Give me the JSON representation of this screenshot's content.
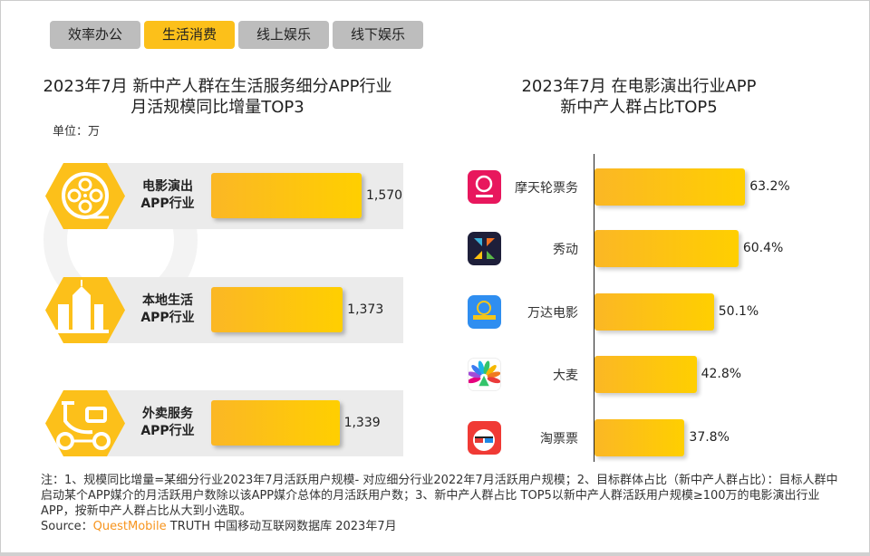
{
  "tabs": [
    {
      "label": "效率办公",
      "active": false
    },
    {
      "label": "生活消费",
      "active": true
    },
    {
      "label": "线上娱乐",
      "active": false
    },
    {
      "label": "线下娱乐",
      "active": false
    }
  ],
  "watermark": "QUEST MOBILE",
  "colors": {
    "accent": "#fcc01a",
    "bar_start": "#fbb725",
    "bar_end": "#ffcf00",
    "tab_inactive": "#bdbdbd",
    "band": "#ebebeb",
    "brand": "#f7941d"
  },
  "chart_data": [
    {
      "type": "bar",
      "orientation": "horizontal",
      "title_line1": "2023年7月 新中产人群在生活服务细分APP行业",
      "title_line2": "月活规模同比增量TOP3",
      "unit": "单位：万",
      "categories": [
        {
          "line1": "电影演出",
          "line2": "APP行业",
          "icon": "film-reel-icon"
        },
        {
          "line1": "本地生活",
          "line2": "APP行业",
          "icon": "city-buildings-icon"
        },
        {
          "line1": "外卖服务",
          "line2": "APP行业",
          "icon": "delivery-scooter-icon"
        }
      ],
      "values": [
        1570,
        1373,
        1339
      ],
      "value_labels": [
        "1,570",
        "1,373",
        "1,339"
      ]
    },
    {
      "type": "bar",
      "orientation": "horizontal",
      "title_line1": "2023年7月 在电影演出行业APP",
      "title_line2": "新中产人群占比TOP5",
      "categories": [
        {
          "name": "摩天轮票务",
          "icon": "motianlun-app-icon",
          "icon_color": "#e8175d"
        },
        {
          "name": "秀动",
          "icon": "xiudong-app-icon",
          "icon_color": "#1e1f3a"
        },
        {
          "name": "万达电影",
          "icon": "wanda-app-icon",
          "icon_color": "#2f8ef0"
        },
        {
          "name": "大麦",
          "icon": "damai-app-icon",
          "icon_color": "#ffffff"
        },
        {
          "name": "淘票票",
          "icon": "taopiaopiao-app-icon",
          "icon_color": "#f03a35"
        }
      ],
      "values": [
        63.2,
        60.4,
        50.1,
        42.8,
        37.8
      ],
      "value_labels": [
        "63.2%",
        "60.4%",
        "50.1%",
        "42.8%",
        "37.8%"
      ]
    }
  ],
  "footer": {
    "note": "注：1、规模同比增量=某细分行业2023年7月活跃用户规模- 对应细分行业2022年7月活跃用户规模；2、目标群体占比（新中产人群占比）：目标人群中启动某个APP媒介的月活跃用户数除以该APP媒介总体的月活跃用户数；3、新中产人群占比 TOP5以新中产人群活跃用户规模≥100万的电影演出行业APP，按新中产人群占比从大到小选取。",
    "source_label": "Source：",
    "source_brand": "QuestMobile",
    "source_text": " TRUTH 中国移动互联网数据库 2023年7月"
  }
}
